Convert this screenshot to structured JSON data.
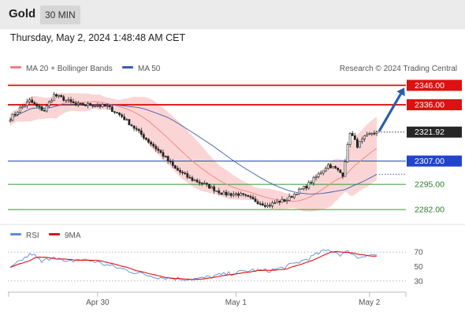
{
  "header": {
    "title": "Gold",
    "timeframe": "30 MIN"
  },
  "datetime": "Thursday, May 2, 2024 1:48:48 AM CET",
  "colors": {
    "resistance": "#dd1111",
    "support": "#2244cc",
    "target": "#339933",
    "ma20": "#f08080",
    "ma50": "#3a5fb0",
    "band_fill": "#fbd5d5",
    "candle": "#222222",
    "arrow": "#2a5dab",
    "rsi": "#5b8bd6",
    "rsi_ma": "#dd1111"
  },
  "legend": {
    "ma20": "MA 20 + Bollinger Bands",
    "ma50": "MA 50",
    "credit": "Research © 2024 Trading Central",
    "rsi": "RSI",
    "rsi_ma": "9MA"
  },
  "chart_data": [
    {
      "type": "candlestick",
      "title": "Gold",
      "timeframe": "30 MIN",
      "ylim": [
        2278,
        2349
      ],
      "x_labels": [
        "Apr 30",
        "May 1",
        "May 2"
      ],
      "current_price": 2321.92,
      "levels": [
        {
          "value": 2346.0,
          "label": "2346.00",
          "style": "resistance"
        },
        {
          "value": 2336.0,
          "label": "2336.00",
          "style": "resistance"
        },
        {
          "value": 2307.0,
          "label": "2307.00",
          "style": "support"
        },
        {
          "value": 2295.0,
          "label": "2295.00",
          "style": "target"
        },
        {
          "value": 2282.0,
          "label": "2282.00",
          "style": "target"
        }
      ],
      "close_keypoints": [
        [
          0,
          2329
        ],
        [
          4,
          2334
        ],
        [
          8,
          2338
        ],
        [
          11,
          2335
        ],
        [
          14,
          2333
        ],
        [
          18,
          2341
        ],
        [
          22,
          2339
        ],
        [
          27,
          2336
        ],
        [
          34,
          2336
        ],
        [
          40,
          2335
        ],
        [
          46,
          2330
        ],
        [
          52,
          2323
        ],
        [
          58,
          2316
        ],
        [
          63,
          2310
        ],
        [
          68,
          2303
        ],
        [
          74,
          2298
        ],
        [
          80,
          2295
        ],
        [
          88,
          2290
        ],
        [
          94,
          2290
        ],
        [
          100,
          2287
        ],
        [
          106,
          2284
        ],
        [
          110,
          2286
        ],
        [
          114,
          2287
        ],
        [
          118,
          2291
        ],
        [
          122,
          2294
        ],
        [
          127,
          2300
        ],
        [
          131,
          2305
        ],
        [
          134,
          2303
        ],
        [
          137,
          2300
        ],
        [
          140,
          2322
        ],
        [
          143,
          2315
        ],
        [
          146,
          2319
        ],
        [
          149,
          2321.5
        ],
        [
          151,
          2321.92
        ]
      ],
      "projection": {
        "from": 2321.92,
        "to": 2346.0
      }
    },
    {
      "type": "line",
      "title": "RSI",
      "ylim": [
        20,
        80
      ],
      "yticks": [
        30,
        50,
        70
      ],
      "series": [
        "RSI",
        "9MA"
      ],
      "rsi_keypoints": [
        [
          0,
          47
        ],
        [
          5,
          60
        ],
        [
          9,
          68
        ],
        [
          13,
          56
        ],
        [
          18,
          65
        ],
        [
          23,
          55
        ],
        [
          28,
          60
        ],
        [
          34,
          58
        ],
        [
          40,
          52
        ],
        [
          48,
          45
        ],
        [
          55,
          39
        ],
        [
          62,
          35
        ],
        [
          70,
          33
        ],
        [
          78,
          33
        ],
        [
          86,
          38
        ],
        [
          94,
          42
        ],
        [
          100,
          45
        ],
        [
          106,
          44
        ],
        [
          112,
          48
        ],
        [
          118,
          55
        ],
        [
          124,
          63
        ],
        [
          128,
          70
        ],
        [
          132,
          73
        ],
        [
          136,
          67
        ],
        [
          140,
          71
        ],
        [
          143,
          62
        ],
        [
          146,
          66
        ],
        [
          151,
          66
        ]
      ]
    }
  ]
}
